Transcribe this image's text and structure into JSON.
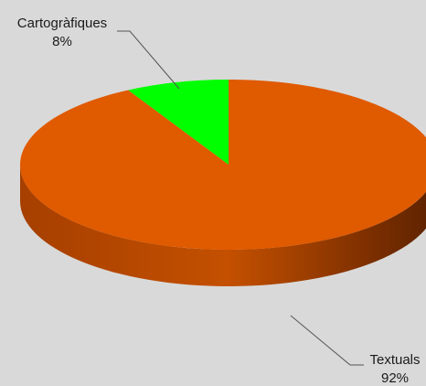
{
  "chart_data": {
    "type": "pie",
    "title": "",
    "categories": [
      "Cartogràfiques",
      "Textuals"
    ],
    "values": [
      8,
      92
    ],
    "value_labels": [
      "8%",
      "92%"
    ],
    "colors": [
      "#00ff00",
      "#e05a00"
    ],
    "side_colors": [
      "#00b000",
      "#b84800"
    ],
    "style": "3d",
    "legend": "none"
  }
}
